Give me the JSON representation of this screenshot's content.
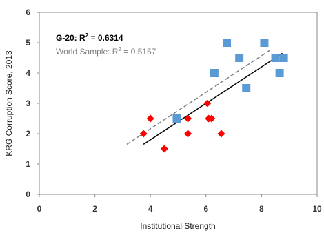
{
  "chart_data": {
    "type": "scatter",
    "xlabel": "Institutional Strength",
    "ylabel": "KRG Corruption Score, 2013",
    "xlim": [
      0,
      10
    ],
    "ylim": [
      0,
      6
    ],
    "x_ticks": [
      "0",
      "2",
      "4",
      "6",
      "8",
      "10"
    ],
    "y_ticks": [
      "0",
      "1",
      "2",
      "3",
      "4",
      "5",
      "6"
    ],
    "grid": false,
    "legend": "none",
    "annotations": {
      "g20": {
        "prefix": "G-20: R",
        "sup": "2",
        "suffix": " = 0.6314"
      },
      "world": {
        "prefix": "World Sample:  R",
        "sup": "2",
        "suffix": " = 0.5157"
      }
    },
    "series": [
      {
        "marker": "square",
        "color": "#5b9bd5",
        "points": [
          [
            4.95,
            2.5
          ],
          [
            6.3,
            4.0
          ],
          [
            6.75,
            5.0
          ],
          [
            7.2,
            4.5
          ],
          [
            7.45,
            3.5
          ],
          [
            8.1,
            5.0
          ],
          [
            8.5,
            4.5
          ],
          [
            8.65,
            4.0
          ],
          [
            8.8,
            4.5
          ]
        ]
      },
      {
        "marker": "diamond",
        "color": "#ff0000",
        "points": [
          [
            3.75,
            2.0
          ],
          [
            4.0,
            2.5
          ],
          [
            4.5,
            1.5
          ],
          [
            5.35,
            2.0
          ],
          [
            5.35,
            2.5
          ],
          [
            6.05,
            3.0
          ],
          [
            6.1,
            2.5
          ],
          [
            6.2,
            2.5
          ],
          [
            6.55,
            2.0
          ]
        ]
      }
    ],
    "trendlines": [
      {
        "style": "solid",
        "color": "#000000",
        "from": [
          3.75,
          1.65
        ],
        "to": [
          8.75,
          4.65
        ]
      },
      {
        "style": "dashed",
        "color": "#7f7f7f",
        "from": [
          3.15,
          1.65
        ],
        "to": [
          8.3,
          4.75
        ]
      }
    ]
  }
}
